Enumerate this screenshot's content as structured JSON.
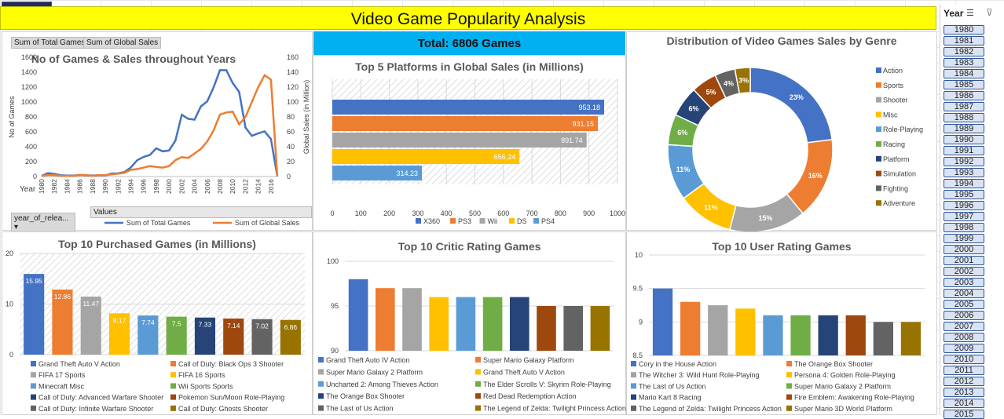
{
  "dashboard": {
    "title": "Video Game Popularity Analysis",
    "total_label": "Total: 6806 Games"
  },
  "pivot_buttons": {
    "games": "Sum of Total Games",
    "sales": "Sum of Global Sales",
    "year_field": "year_of_relea...",
    "values": "Values",
    "year_axis": "Year"
  },
  "slicer": {
    "title": "Year",
    "years": [
      "1980",
      "1981",
      "1982",
      "1983",
      "1984",
      "1985",
      "1986",
      "1987",
      "1988",
      "1989",
      "1990",
      "1991",
      "1992",
      "1993",
      "1994",
      "1995",
      "1996",
      "1997",
      "1998",
      "1999",
      "2000",
      "2001",
      "2002",
      "2003",
      "2004",
      "2005",
      "2006",
      "2007",
      "2008",
      "2009",
      "2010",
      "2011",
      "2012",
      "2013",
      "2014",
      "2015"
    ]
  },
  "colors": {
    "blue": "#4472c4",
    "orange": "#ed7d31",
    "gray": "#a5a5a5",
    "gold": "#ffc000",
    "lightblue": "#5b9bd5",
    "green": "#70ad47",
    "navy": "#264478",
    "rust": "#9e480e",
    "darkgray": "#636363",
    "olive": "#997300",
    "title_yellow": "#ffff00",
    "total_bar": "#00b0f0"
  },
  "chart_data": [
    {
      "type": "line",
      "title": "No of Games & Sales throughout Years",
      "xlabel": "Year",
      "ylabel": "No of Games",
      "y2label": "Global Sales (in Million)",
      "ylim": [
        0,
        1600
      ],
      "y2lim": [
        0,
        160
      ],
      "x_ticks": [
        "1980",
        "1982",
        "1984",
        "1986",
        "1988",
        "1990",
        "1992",
        "1994",
        "1996",
        "1998",
        "2000",
        "2002",
        "2004",
        "2006",
        "2008",
        "2010",
        "2012",
        "2014",
        "2016"
      ],
      "y_ticks": [
        "0",
        "200",
        "400",
        "600",
        "800",
        "1000",
        "1200",
        "1400",
        "1600"
      ],
      "y2_ticks": [
        "0",
        "20",
        "40",
        "60",
        "80",
        "100",
        "120",
        "140",
        "160"
      ],
      "x": [
        1980,
        1981,
        1982,
        1983,
        1984,
        1985,
        1986,
        1987,
        1988,
        1989,
        1990,
        1991,
        1992,
        1993,
        1994,
        1995,
        1996,
        1997,
        1998,
        1999,
        2000,
        2001,
        2002,
        2003,
        2004,
        2005,
        2006,
        2007,
        2008,
        2009,
        2010,
        2011,
        2012,
        2013,
        2014,
        2015,
        2016,
        2017
      ],
      "series": [
        {
          "name": "Sum of Total Games",
          "values": [
            9,
            46,
            36,
            17,
            14,
            14,
            21,
            16,
            15,
            17,
            16,
            41,
            43,
            60,
            121,
            219,
            263,
            289,
            379,
            338,
            349,
            482,
            829,
            775,
            763,
            941,
            1008,
            1197,
            1427,
            1426,
            1255,
            1136,
            657,
            546,
            580,
            606,
            502,
            3
          ]
        },
        {
          "name": "Sum of Global Sales",
          "values": [
            1,
            2,
            2,
            1,
            1,
            1,
            2,
            2,
            1,
            2,
            2,
            3,
            4,
            5,
            9,
            10,
            12,
            14,
            13,
            12,
            14,
            22,
            26,
            25,
            31,
            37,
            47,
            62,
            83,
            86,
            87,
            70,
            80,
            100,
            120,
            136,
            130,
            0
          ]
        }
      ]
    },
    {
      "type": "bar",
      "title": "Top 5 Platforms in Global Sales (in Millions)",
      "categories": [
        "X360",
        "PS3",
        "Wii",
        "DS",
        "PS4"
      ],
      "values": [
        953.18,
        931.15,
        891.74,
        656.24,
        314.23
      ],
      "xlim": [
        0,
        1000
      ],
      "x_ticks": [
        "0",
        "100",
        "200",
        "300",
        "400",
        "500",
        "600",
        "700",
        "800",
        "900",
        "1000"
      ],
      "labels": [
        "953.18",
        "931.15",
        "891.74",
        "656.24",
        "314.23"
      ]
    },
    {
      "type": "pie",
      "title": "Distribution of Video Games Sales by Genre",
      "categories": [
        "Action",
        "Sports",
        "Shooter",
        "Misc",
        "Role-Playing",
        "Racing",
        "Platform",
        "Simulation",
        "Fighting",
        "Adventure"
      ],
      "values": [
        23,
        16,
        15,
        11,
        11,
        6,
        6,
        5,
        4,
        3
      ],
      "labels": [
        "23%",
        "16%",
        "15%",
        "11%",
        "11%",
        "6%",
        "6%",
        "5%",
        "4%",
        "3%"
      ]
    },
    {
      "type": "bar",
      "title": "Top 10 Purchased Games (in Millions)",
      "categories": [
        "Grand Theft Auto V Action",
        "Call of Duty: Black Ops 3 Shooter",
        "FIFA 17 Sports",
        "FIFA 16 Sports",
        "Minecraft Misc",
        "Wii Sports Sports",
        "Call of Duty: Advanced Warfare Shooter",
        "Pokemon Sun/Moon Role-Playing",
        "Call of Duty: Infinite Warfare Shooter",
        "Call of Duty: Ghosts Shooter"
      ],
      "values": [
        15.95,
        12.86,
        11.47,
        8.17,
        7.74,
        7.5,
        7.33,
        7.14,
        7.02,
        6.86
      ],
      "labels": [
        "15.95",
        "12.86",
        "11.47",
        "8.17",
        "7.74",
        "7.5",
        "7.33",
        "7.14",
        "7.02",
        "6.86"
      ],
      "ylim": [
        0,
        20
      ],
      "y_ticks": [
        "0",
        "10",
        "20"
      ]
    },
    {
      "type": "bar",
      "title": "Top 10 Critic Rating Games",
      "categories": [
        "Grand Theft Auto IV Action",
        "Super Mario Galaxy Platform",
        "Super Mario Galaxy 2 Platform",
        "Grand Theft Auto V Action",
        "Uncharted 2: Among Thieves Action",
        "The Elder Scrolls V: Skyrim Role-Playing",
        "The Orange Box Shooter",
        "Red Dead Redemption Action",
        "The Last of Us Action",
        "The Legend of Zelda: Twilight Princess Action"
      ],
      "values": [
        98,
        97,
        97,
        96,
        96,
        96,
        96,
        95,
        95,
        95
      ],
      "ylim": [
        90,
        100
      ],
      "y_ticks": [
        "90",
        "95",
        "100"
      ]
    },
    {
      "type": "bar",
      "title": "Top 10 User Rating Games",
      "categories": [
        "Cory in the House Action",
        "The Orange Box Shooter",
        "The Witcher 3: Wild Hunt Role-Playing",
        "Persona 4: Golden Role-Playing",
        "The Last of Us Action",
        "Super Mario Galaxy 2 Platform",
        "Mario Kart 8 Racing",
        "Fire Emblem: Awakening Role-Playing",
        "The Legend of Zelda: Twilight Princess Action",
        "Super Mario 3D World Platform"
      ],
      "values": [
        9.5,
        9.3,
        9.25,
        9.2,
        9.1,
        9.1,
        9.1,
        9.1,
        9.0,
        9.0
      ],
      "ylim": [
        8.5,
        10
      ],
      "y_ticks": [
        "8.5",
        "9",
        "9.5",
        "10"
      ]
    }
  ]
}
